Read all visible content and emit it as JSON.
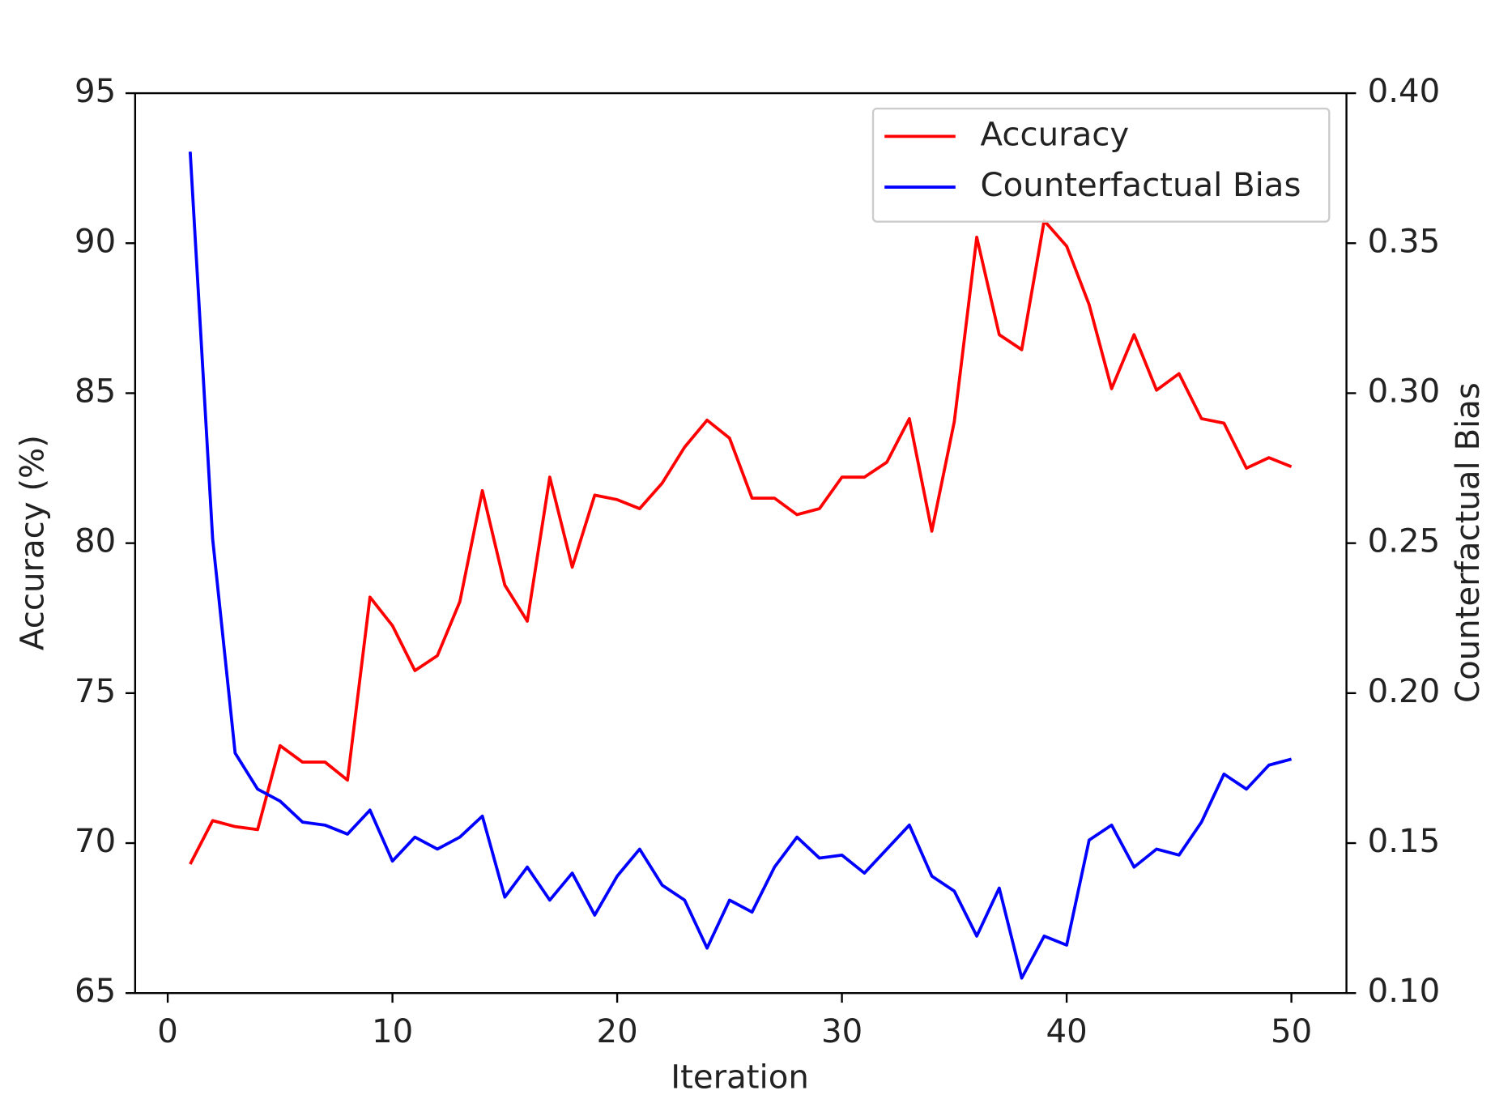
{
  "chart_data": {
    "type": "line",
    "x_label": "Iteration",
    "y_label": "Accuracy (%)",
    "y2_label": "Counterfactual Bias",
    "x": [
      1,
      2,
      3,
      4,
      5,
      6,
      7,
      8,
      9,
      10,
      11,
      12,
      13,
      14,
      15,
      16,
      17,
      18,
      19,
      20,
      21,
      22,
      23,
      24,
      25,
      26,
      27,
      28,
      29,
      30,
      31,
      32,
      33,
      34,
      35,
      36,
      37,
      38,
      39,
      40,
      41,
      42,
      43,
      44,
      45,
      46,
      47,
      48,
      49,
      50
    ],
    "series": [
      {
        "name": "Accuracy",
        "color": "#ff0000",
        "axis": "y",
        "values": [
          69.3,
          70.75,
          70.55,
          70.45,
          73.25,
          72.7,
          72.7,
          72.1,
          78.2,
          77.25,
          75.75,
          76.25,
          78.05,
          81.75,
          78.6,
          77.4,
          82.2,
          79.2,
          81.6,
          81.45,
          81.15,
          82.0,
          83.2,
          84.1,
          83.5,
          81.5,
          81.5,
          80.95,
          81.15,
          82.2,
          82.2,
          82.7,
          84.15,
          80.4,
          84.05,
          90.2,
          86.95,
          86.45,
          90.75,
          89.9,
          87.95,
          85.15,
          86.95,
          85.1,
          85.65,
          84.15,
          84.0,
          82.5,
          82.85,
          82.55
        ]
      },
      {
        "name": "Counterfactual Bias",
        "color": "#0000ff",
        "axis": "y2",
        "values": [
          0.3805,
          0.2514,
          0.18,
          0.168,
          0.164,
          0.157,
          0.156,
          0.153,
          0.161,
          0.144,
          0.152,
          0.148,
          0.152,
          0.159,
          0.132,
          0.142,
          0.131,
          0.14,
          0.126,
          0.139,
          0.148,
          0.136,
          0.131,
          0.115,
          0.131,
          0.127,
          0.142,
          0.152,
          0.145,
          0.146,
          0.14,
          0.148,
          0.156,
          0.139,
          0.134,
          0.119,
          0.135,
          0.105,
          0.119,
          0.116,
          0.151,
          0.156,
          0.142,
          0.148,
          0.146,
          0.157,
          0.173,
          0.168,
          0.176,
          0.178
        ]
      }
    ],
    "xlim": [
      -1.45,
      52.45
    ],
    "xticks": [
      0,
      10,
      20,
      30,
      40,
      50
    ],
    "ylim": [
      65,
      95
    ],
    "yticks": [
      65,
      70,
      75,
      80,
      85,
      90,
      95
    ],
    "y2lim": [
      0.1,
      0.4
    ],
    "y2ticks": [
      {
        "value": 0.1,
        "label": "0.10"
      },
      0.15,
      {
        "value": 0.2,
        "label": "0.20"
      },
      0.25,
      {
        "value": 0.3,
        "label": "0.30"
      },
      0.35,
      {
        "value": 0.4,
        "label": "0.40"
      }
    ],
    "legend": "upper right"
  }
}
